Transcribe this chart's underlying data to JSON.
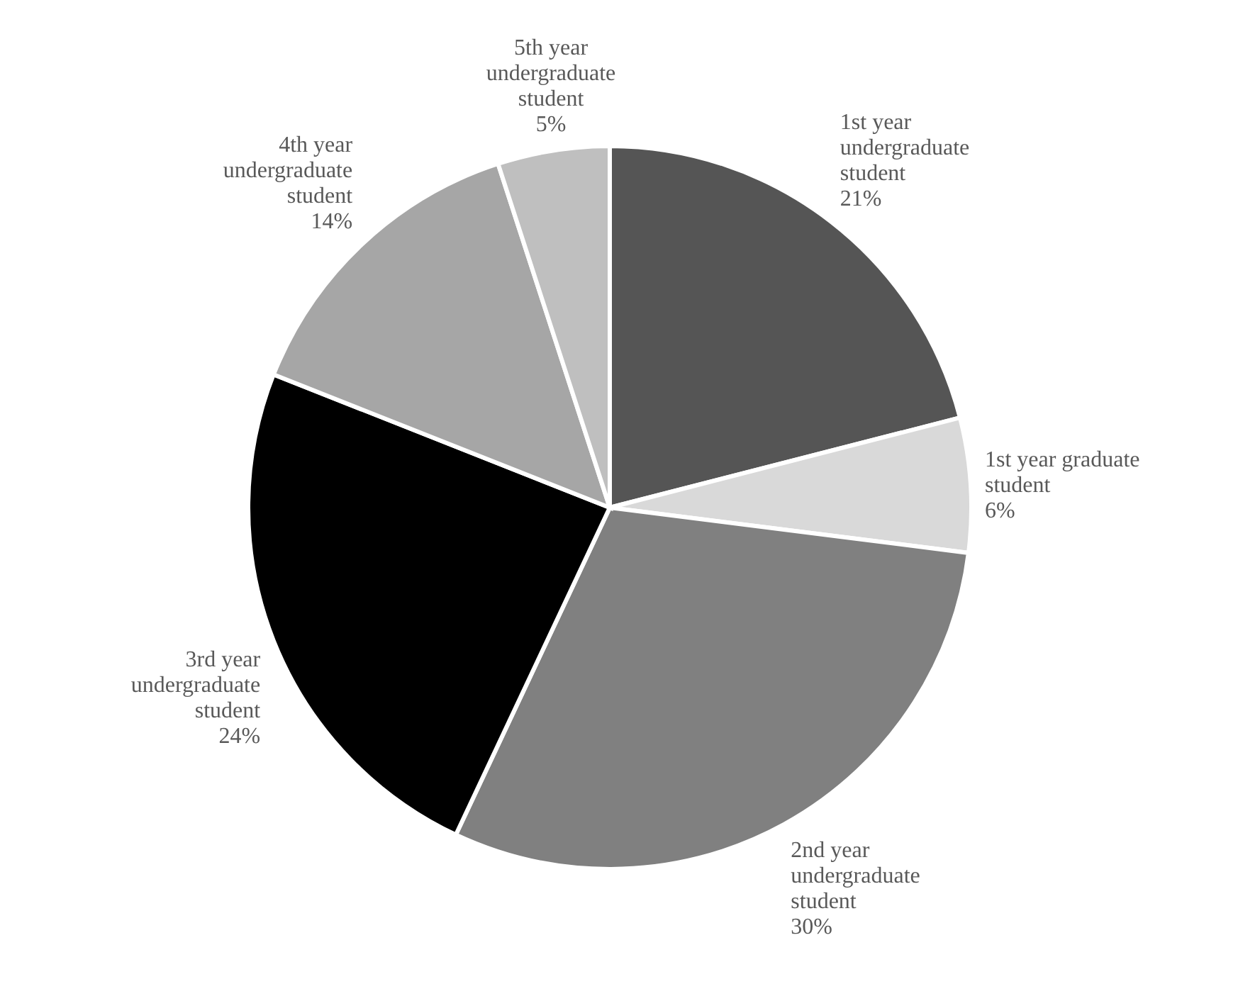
{
  "chart_data": {
    "type": "pie",
    "categories": [
      "1st year undergraduate student",
      "1st year graduate student",
      "2nd year undergraduate student",
      "3rd year undergraduate student",
      "4th year undergraduate student",
      "5th year undergraduate student"
    ],
    "values": [
      21,
      6,
      30,
      24,
      14,
      5
    ],
    "colors": [
      "#555555",
      "#d9d9d9",
      "#808080",
      "#000000",
      "#a6a6a6",
      "#bfbfbf"
    ],
    "value_labels": [
      "21%",
      "6%",
      "30%",
      "24%",
      "14%",
      "5%"
    ],
    "legend": false
  }
}
